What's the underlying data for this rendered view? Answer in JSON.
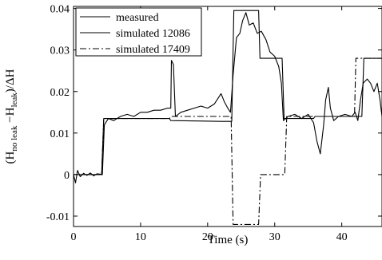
{
  "chart_data": {
    "type": "line",
    "title": "",
    "xlabel": "Time (s)",
    "ylabel": {
      "main": "(H",
      "sub1": "no leak",
      "mid": " −H",
      "sub2": "leak",
      "end": ")/ΔH"
    },
    "xlim": [
      0,
      46
    ],
    "ylim": [
      -0.0125,
      0.0405
    ],
    "xticks": [
      0,
      10,
      20,
      30,
      40
    ],
    "xtick_labels": [
      "0",
      "10",
      "20",
      "30",
      "40"
    ],
    "yticks": [
      -0.01,
      0,
      0.01,
      0.02,
      0.03,
      0.04
    ],
    "ytick_labels": [
      "-0.01",
      "0",
      "0.01",
      "0.02",
      "0.03",
      "0.04"
    ],
    "grid": false,
    "legend_position": "top-left",
    "series": [
      {
        "name": "measured",
        "color": "#000000",
        "dash": "solid",
        "points": [
          [
            0,
            0.0
          ],
          [
            0.3,
            -0.002
          ],
          [
            0.6,
            0.001
          ],
          [
            1.0,
            -0.0005
          ],
          [
            1.5,
            0.0003
          ],
          [
            2.0,
            -0.0002
          ],
          [
            2.5,
            0.0004
          ],
          [
            3.0,
            -0.0003
          ],
          [
            3.5,
            0.0002
          ],
          [
            4.0,
            0.0001
          ],
          [
            4.3,
            0.0
          ],
          [
            4.6,
            0.012
          ],
          [
            5.2,
            0.0135
          ],
          [
            6.0,
            0.013
          ],
          [
            7.0,
            0.014
          ],
          [
            8.0,
            0.0145
          ],
          [
            9.0,
            0.014
          ],
          [
            10.0,
            0.015
          ],
          [
            11.0,
            0.015
          ],
          [
            12.0,
            0.0155
          ],
          [
            13.0,
            0.0155
          ],
          [
            14.0,
            0.016
          ],
          [
            14.5,
            0.016
          ],
          [
            14.6,
            0.0275
          ],
          [
            14.9,
            0.0265
          ],
          [
            15.2,
            0.014
          ],
          [
            16.0,
            0.015
          ],
          [
            17.0,
            0.0155
          ],
          [
            18.0,
            0.016
          ],
          [
            19.0,
            0.0165
          ],
          [
            20.0,
            0.016
          ],
          [
            21.0,
            0.017
          ],
          [
            22.0,
            0.0195
          ],
          [
            22.5,
            0.0175
          ],
          [
            23.0,
            0.016
          ],
          [
            23.4,
            0.015
          ],
          [
            23.8,
            0.024
          ],
          [
            24.3,
            0.033
          ],
          [
            24.8,
            0.034
          ],
          [
            25.2,
            0.037
          ],
          [
            25.7,
            0.039
          ],
          [
            26.2,
            0.036
          ],
          [
            26.8,
            0.0365
          ],
          [
            27.4,
            0.034
          ],
          [
            28.0,
            0.0345
          ],
          [
            28.7,
            0.0325
          ],
          [
            29.3,
            0.0295
          ],
          [
            30.0,
            0.0285
          ],
          [
            30.6,
            0.026
          ],
          [
            31.0,
            0.022
          ],
          [
            31.3,
            0.013
          ],
          [
            32.0,
            0.014
          ],
          [
            33.0,
            0.0145
          ],
          [
            34.0,
            0.0135
          ],
          [
            35.0,
            0.0145
          ],
          [
            35.8,
            0.0125
          ],
          [
            36.3,
            0.008
          ],
          [
            36.8,
            0.005
          ],
          [
            37.3,
            0.012
          ],
          [
            37.6,
            0.018
          ],
          [
            38.0,
            0.021
          ],
          [
            38.3,
            0.016
          ],
          [
            38.8,
            0.013
          ],
          [
            39.5,
            0.014
          ],
          [
            40.5,
            0.0145
          ],
          [
            41.5,
            0.014
          ],
          [
            42.0,
            0.015
          ],
          [
            42.4,
            0.013
          ],
          [
            42.8,
            0.018
          ],
          [
            43.2,
            0.022
          ],
          [
            43.8,
            0.023
          ],
          [
            44.3,
            0.022
          ],
          [
            44.8,
            0.02
          ],
          [
            45.3,
            0.022
          ],
          [
            45.7,
            0.018
          ],
          [
            46.0,
            0.014
          ]
        ]
      },
      {
        "name": "simulated 12086",
        "color": "#000000",
        "dash": "solid",
        "points": [
          [
            0,
            0.0
          ],
          [
            4.2,
            0.0
          ],
          [
            4.5,
            0.0135
          ],
          [
            10.0,
            0.0135
          ],
          [
            14.3,
            0.0135
          ],
          [
            14.5,
            0.013
          ],
          [
            22.0,
            0.0128
          ],
          [
            23.6,
            0.0128
          ],
          [
            23.9,
            0.0395
          ],
          [
            27.6,
            0.0395
          ],
          [
            27.8,
            0.028
          ],
          [
            31.1,
            0.028
          ],
          [
            31.4,
            0.0135
          ],
          [
            35.8,
            0.0135
          ],
          [
            36.0,
            0.014
          ],
          [
            39.0,
            0.014
          ],
          [
            40.0,
            0.014
          ],
          [
            43.0,
            0.014
          ],
          [
            43.3,
            0.028
          ],
          [
            46.0,
            0.028
          ]
        ]
      },
      {
        "name": "simulated 17409",
        "color": "#000000",
        "dash": "dashdot",
        "points": [
          [
            0,
            0.0
          ],
          [
            4.2,
            0.0
          ],
          [
            4.5,
            0.0135
          ],
          [
            14.3,
            0.0135
          ],
          [
            14.5,
            0.014
          ],
          [
            22.0,
            0.014
          ],
          [
            23.5,
            0.014
          ],
          [
            23.8,
            -0.012
          ],
          [
            27.6,
            -0.012
          ],
          [
            27.9,
            0.0
          ],
          [
            31.5,
            0.0
          ],
          [
            31.8,
            0.014
          ],
          [
            41.9,
            0.014
          ],
          [
            42.1,
            0.028
          ],
          [
            46.0,
            0.028
          ]
        ]
      }
    ]
  }
}
